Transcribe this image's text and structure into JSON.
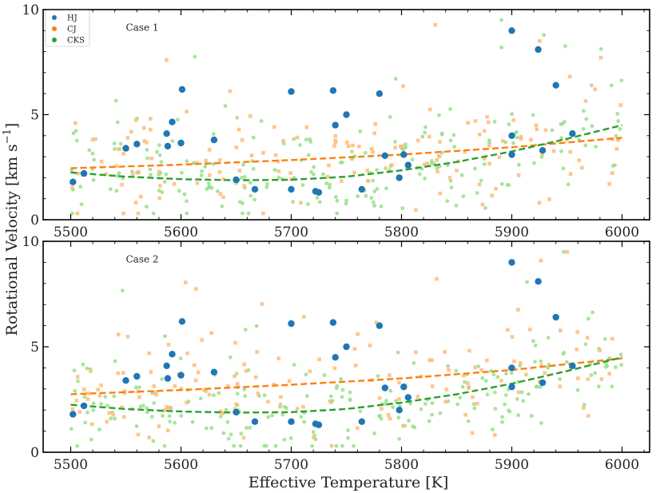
{
  "chart_data": {
    "type": "scatter",
    "xlabel": "Effective Temperature [K]",
    "ylabel": "Rotational Velocity [km s",
    "ylabel_superscript": "−1",
    "ylabel_close": "]",
    "xlim": [
      5475,
      6025
    ],
    "ylim": [
      0,
      10
    ],
    "x_ticks": [
      5500,
      5600,
      5700,
      5800,
      5900,
      6000
    ],
    "x_tick_labels": [
      "5500",
      "5600",
      "5700",
      "5800",
      "5900",
      "6000"
    ],
    "y_ticks": [
      0,
      5,
      10
    ],
    "y_tick_labels": [
      "0",
      "5",
      "10"
    ],
    "legend": [
      {
        "name": "HJ",
        "color": "#1f77b4"
      },
      {
        "name": "CJ",
        "color": "#ff7f0e"
      },
      {
        "name": "CKS",
        "color": "#2ca02c"
      }
    ],
    "hj_points": [
      [
        5502,
        1.8
      ],
      [
        5512,
        2.2
      ],
      [
        5550,
        3.4
      ],
      [
        5560,
        3.6
      ],
      [
        5588,
        3.5
      ],
      [
        5587,
        4.1
      ],
      [
        5592,
        4.65
      ],
      [
        5600,
        3.65
      ],
      [
        5601,
        6.2
      ],
      [
        5630,
        3.8
      ],
      [
        5650,
        1.9
      ],
      [
        5667,
        1.45
      ],
      [
        5700,
        1.45
      ],
      [
        5700,
        6.1
      ],
      [
        5722,
        1.35
      ],
      [
        5725,
        1.3
      ],
      [
        5738,
        6.15
      ],
      [
        5740,
        4.5
      ],
      [
        5750,
        5.0
      ],
      [
        5764,
        1.45
      ],
      [
        5780,
        6.0
      ],
      [
        5785,
        3.05
      ],
      [
        5798,
        2.0
      ],
      [
        5802,
        3.1
      ],
      [
        5806,
        2.6
      ],
      [
        5900,
        9.0
      ],
      [
        5900,
        4.0
      ],
      [
        5900,
        3.1
      ],
      [
        5924,
        8.1
      ],
      [
        5928,
        3.3
      ],
      [
        5940,
        6.4
      ],
      [
        5955,
        4.1
      ]
    ],
    "panels": [
      {
        "label": "Case 1",
        "cj_seed": 11,
        "cks_seed": 29,
        "cj_fit": [
          [
            5500,
            2.45
          ],
          [
            5600,
            2.62
          ],
          [
            5700,
            2.84
          ],
          [
            5800,
            3.1
          ],
          [
            5900,
            3.45
          ],
          [
            6000,
            3.9
          ]
        ],
        "cks_fit": [
          [
            5500,
            2.25
          ],
          [
            5550,
            2.05
          ],
          [
            5600,
            1.93
          ],
          [
            5650,
            1.88
          ],
          [
            5700,
            1.9
          ],
          [
            5750,
            2.05
          ],
          [
            5800,
            2.35
          ],
          [
            5850,
            2.75
          ],
          [
            5900,
            3.25
          ],
          [
            5950,
            3.85
          ],
          [
            6000,
            4.5
          ]
        ]
      },
      {
        "label": "Case 2",
        "cj_seed": 47,
        "cks_seed": 83,
        "cj_fit": [
          [
            5500,
            2.75
          ],
          [
            5600,
            2.95
          ],
          [
            5700,
            3.2
          ],
          [
            5800,
            3.5
          ],
          [
            5900,
            3.9
          ],
          [
            6000,
            4.45
          ]
        ],
        "cks_fit": [
          [
            5500,
            2.25
          ],
          [
            5550,
            2.05
          ],
          [
            5600,
            1.93
          ],
          [
            5650,
            1.88
          ],
          [
            5700,
            1.9
          ],
          [
            5750,
            2.05
          ],
          [
            5800,
            2.35
          ],
          [
            5850,
            2.75
          ],
          [
            5900,
            3.25
          ],
          [
            5950,
            3.85
          ],
          [
            6000,
            4.5
          ]
        ]
      }
    ],
    "colors": {
      "hj": "#1f77b4",
      "cj": "#ff7f0e",
      "cks": "#2ca02c",
      "cj_faint": "#ffbb78",
      "cks_faint": "#98df8a"
    }
  }
}
